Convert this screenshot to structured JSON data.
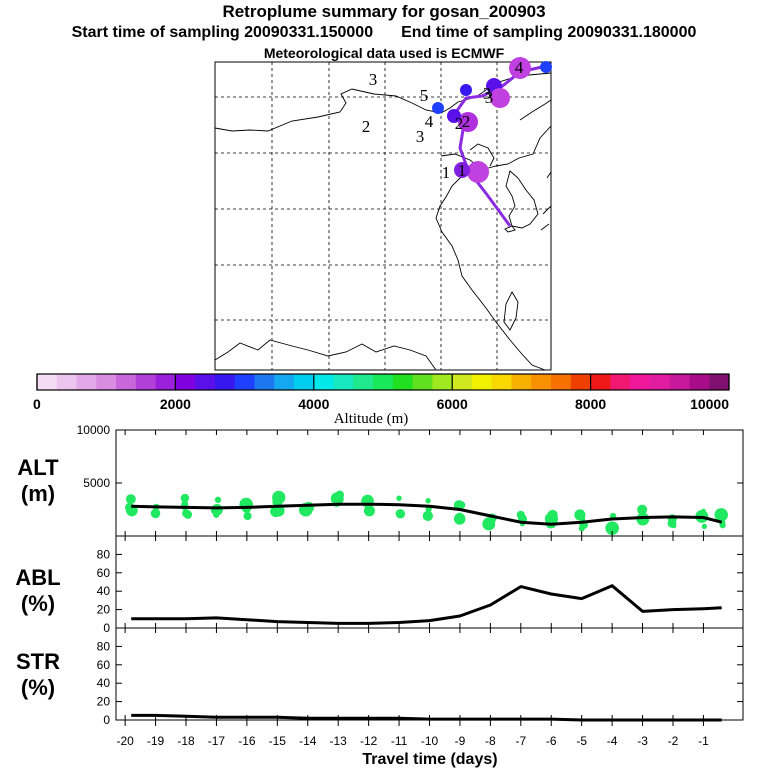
{
  "header": {
    "title": "Retroplume summary for gosan_200903",
    "start_time": "Start time of sampling 20090331.150000",
    "end_time": "End time of sampling 20090331.180000",
    "met_data": "Meteorological data used is ECMWF"
  },
  "map": {
    "day_labels": [
      "1",
      "1",
      "2",
      "2",
      "3",
      "3",
      "3",
      "4",
      "4",
      "5",
      "2",
      "3"
    ],
    "plume_color": "#8a2be2"
  },
  "colorbar": {
    "title": "Altitude (m)",
    "tick_labels": [
      "0",
      "2000",
      "4000",
      "6000",
      "8000",
      "10000"
    ],
    "colors": [
      "#f4dcf4",
      "#ecc4ee",
      "#e2a8e8",
      "#d88ce2",
      "#c866dc",
      "#b040d8",
      "#9a20dc",
      "#8000e0",
      "#5a10e8",
      "#3818f0",
      "#2040ff",
      "#1c78f0",
      "#14a8f0",
      "#00ccf0",
      "#00e8e8",
      "#18e8c0",
      "#20e88c",
      "#18e85a",
      "#20e020",
      "#60e020",
      "#a0e820",
      "#d0e820",
      "#f0f000",
      "#f8d800",
      "#f8b000",
      "#f89000",
      "#f87000",
      "#f04000",
      "#f01818",
      "#f01870",
      "#f0189c",
      "#e01ca0",
      "#c8189c",
      "#a80c88",
      "#801070"
    ],
    "frame_color": "#000000"
  },
  "labels": {
    "alt": "ALT",
    "alt_unit": "(m)",
    "abl": "ABL",
    "abl_unit": "(%)",
    "str": "STR",
    "str_unit": "(%)",
    "xaxis": "Travel time (days)"
  },
  "chart_data": [
    {
      "type": "line",
      "name": "ALT",
      "title": "Retroplume summary for gosan_200903",
      "xlabel": "Travel time (days)",
      "ylabel": "ALT (m)",
      "xlim": [
        -20,
        0
      ],
      "ylim": [
        0,
        10000
      ],
      "ytick_labels": [
        "5000",
        "10000"
      ],
      "yticks": [
        5000,
        10000
      ],
      "x": [
        -19.8,
        -19,
        -18,
        -17,
        -16,
        -15,
        -14,
        -13,
        -12,
        -11,
        -10,
        -9,
        -8,
        -7,
        -6,
        -5,
        -4,
        -3,
        -2,
        -1,
        -0.4
      ],
      "values": [
        2800,
        2750,
        2700,
        2650,
        2700,
        2800,
        2900,
        3000,
        3000,
        2950,
        2800,
        2500,
        1900,
        1300,
        1100,
        1300,
        1600,
        1750,
        1800,
        1750,
        1300
      ],
      "scatter_color": "#20e860",
      "line_color": "#000000"
    },
    {
      "type": "line",
      "name": "ABL",
      "xlim": [
        -20,
        0
      ],
      "ylim": [
        0,
        100
      ],
      "ytick_labels": [
        "0",
        "20",
        "40",
        "60",
        "80"
      ],
      "yticks": [
        0,
        20,
        40,
        60,
        80
      ],
      "x": [
        -19.8,
        -19,
        -18,
        -17,
        -16,
        -15,
        -14,
        -13,
        -12,
        -11,
        -10,
        -9,
        -8,
        -7,
        -6,
        -5,
        -4,
        -3,
        -2,
        -1,
        -0.4
      ],
      "values": [
        10,
        10,
        10,
        11,
        9,
        7,
        6,
        5,
        5,
        6,
        8,
        13,
        25,
        45,
        37,
        32,
        46,
        18,
        20,
        21,
        22
      ],
      "line_color": "#000000"
    },
    {
      "type": "line",
      "name": "STR",
      "xlim": [
        -20,
        0
      ],
      "ylim": [
        0,
        100
      ],
      "ytick_labels": [
        "0",
        "20",
        "40",
        "60",
        "80"
      ],
      "yticks": [
        0,
        20,
        40,
        60,
        80
      ],
      "x": [
        -19.8,
        -19,
        -18,
        -17,
        -16,
        -15,
        -14,
        -13,
        -12,
        -11,
        -10,
        -9,
        -8,
        -7,
        -6,
        -5,
        -4,
        -3,
        -2,
        -1,
        -0.4
      ],
      "values": [
        5,
        5,
        4,
        3,
        3,
        3,
        2,
        2,
        2,
        2,
        1,
        1,
        1,
        1,
        1,
        0,
        0,
        0,
        0,
        0,
        0
      ],
      "line_color": "#000000"
    }
  ],
  "xaxis": {
    "ticks": [
      -20,
      -19,
      -18,
      -17,
      -16,
      -15,
      -14,
      -13,
      -12,
      -11,
      -10,
      -9,
      -8,
      -7,
      -6,
      -5,
      -4,
      -3,
      -2,
      -1
    ],
    "tick_labels": [
      "-20",
      "-19",
      "-18",
      "-17",
      "-16",
      "-15",
      "-14",
      "-13",
      "-12",
      "-11",
      "-10",
      "-9",
      "-8",
      "-7",
      "-6",
      "-5",
      "-4",
      "-3",
      "-2",
      "-1"
    ]
  }
}
